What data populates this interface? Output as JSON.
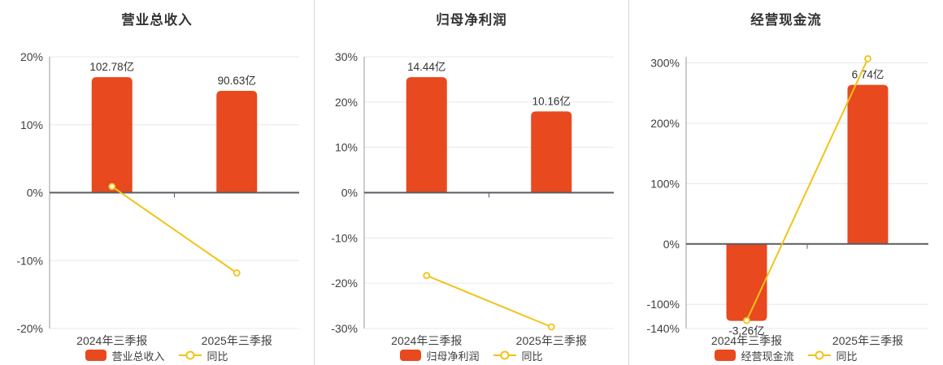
{
  "colors": {
    "bar": "#e8491f",
    "line": "#f2c318",
    "grid": "#e6e8f0",
    "zero_axis": "#5a5c63",
    "y_axis_line": "#999999",
    "tick_text": "#404040",
    "label_text": "#333333"
  },
  "chart_data": [
    {
      "type": "bar+line",
      "title": "营业总收入",
      "categories": [
        "2024年三季报",
        "2025年三季报"
      ],
      "bar_series": {
        "name": "营业总收入",
        "unit": "亿",
        "values": [
          102.78,
          90.63
        ],
        "labels": [
          "102.78亿",
          "90.63亿"
        ]
      },
      "line_series": {
        "name": "同比",
        "unit": "%",
        "values": [
          0.9,
          -11.82
        ]
      },
      "ylim": [
        -20,
        20
      ],
      "yticks": [
        20,
        10,
        0,
        -10,
        -20
      ],
      "ytick_labels": [
        "20%",
        "10%",
        "0%",
        "-10%",
        "-20%"
      ],
      "grid": true,
      "legend_position": "bottom"
    },
    {
      "type": "bar+line",
      "title": "归母净利润",
      "categories": [
        "2024年三季报",
        "2025年三季报"
      ],
      "bar_series": {
        "name": "归母净利润",
        "unit": "亿",
        "values": [
          14.44,
          10.16
        ],
        "labels": [
          "14.44亿",
          "10.16亿"
        ]
      },
      "line_series": {
        "name": "同比",
        "unit": "%",
        "values": [
          -18.3,
          -29.64
        ]
      },
      "ylim": [
        -30,
        30
      ],
      "yticks": [
        30,
        20,
        10,
        0,
        -10,
        -20,
        -30
      ],
      "ytick_labels": [
        "30%",
        "20%",
        "10%",
        "0%",
        "-10%",
        "-20%",
        "-30%"
      ],
      "grid": true,
      "legend_position": "bottom"
    },
    {
      "type": "bar+line",
      "title": "经营现金流",
      "categories": [
        "2024年三季报",
        "2025年三季报"
      ],
      "bar_series": {
        "name": "经营现金流",
        "unit": "亿",
        "values": [
          -3.26,
          6.74
        ],
        "labels": [
          "-3.26亿",
          "6.74亿"
        ]
      },
      "line_series": {
        "name": "同比",
        "unit": "%",
        "values": [
          -126.8,
          306.75
        ]
      },
      "ylim": [
        -140,
        310
      ],
      "yticks": [
        300,
        200,
        100,
        0,
        -100,
        -140
      ],
      "ytick_labels": [
        "300%",
        "200%",
        "100%",
        "0%",
        "-100%",
        "-140%"
      ],
      "grid": true,
      "legend_position": "bottom"
    }
  ]
}
